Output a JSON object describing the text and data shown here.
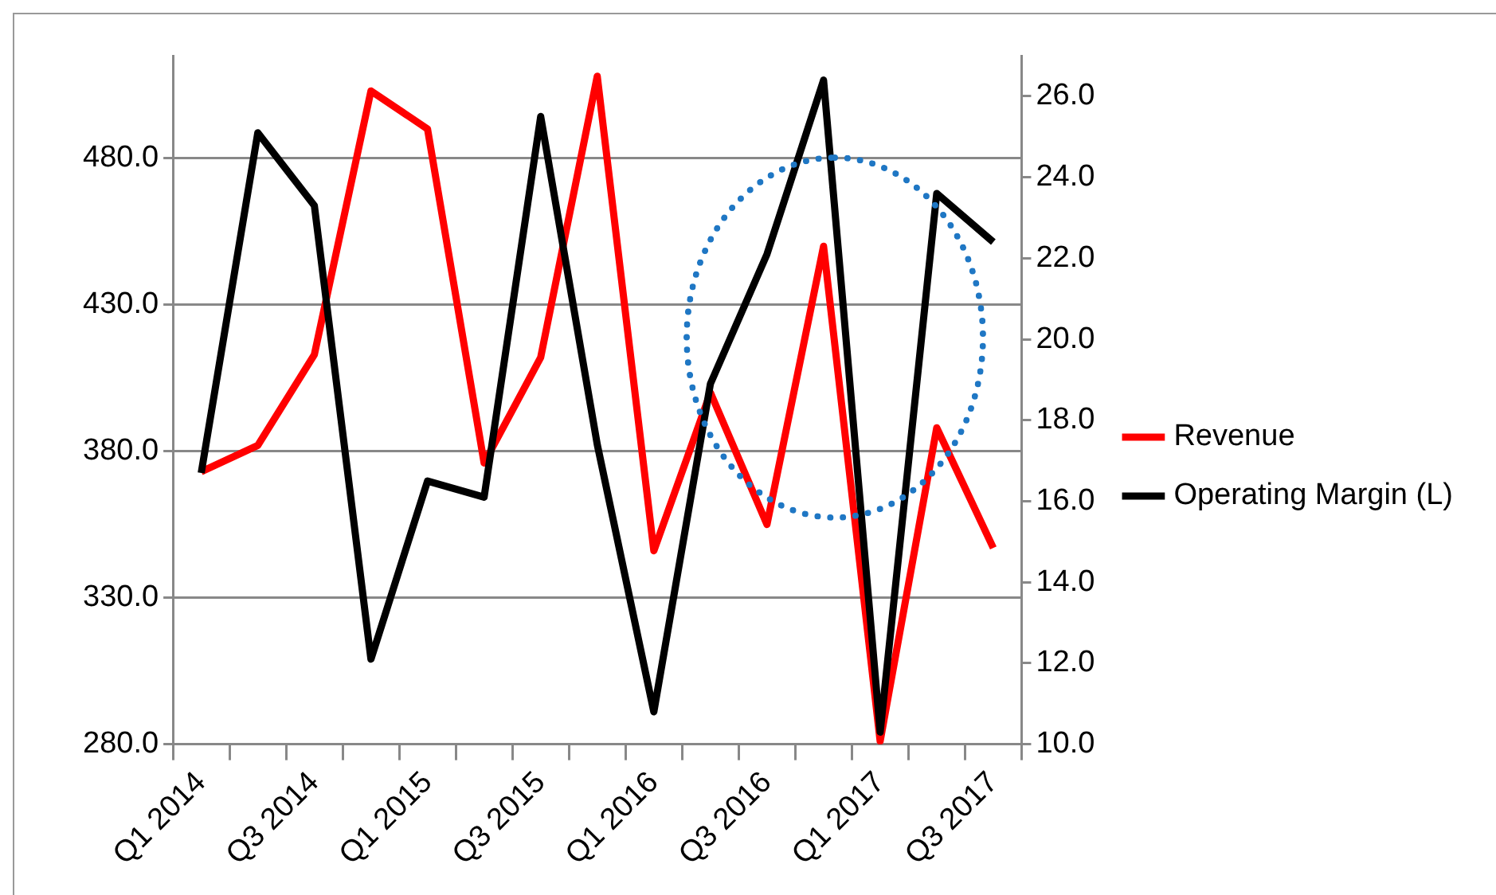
{
  "chart_data": {
    "type": "line",
    "categories": [
      "Q1 2014",
      null,
      "Q3 2014",
      null,
      "Q1 2015",
      null,
      "Q3 2015",
      null,
      "Q1 2016",
      null,
      "Q3 2016",
      null,
      "Q1 2017",
      null,
      "Q3 2017"
    ],
    "series": [
      {
        "name": "Revenue",
        "color": "#ff0000",
        "axis": "y",
        "values": [
          373,
          382,
          413,
          503,
          490,
          376,
          412,
          508,
          346,
          400,
          355,
          450,
          281,
          388,
          347
        ]
      },
      {
        "name": "Operating Margin (L)",
        "color": "#000000",
        "axis": "y2",
        "values": [
          16.7,
          25.1,
          23.3,
          12.1,
          16.5,
          16.1,
          25.5,
          17.4,
          10.8,
          18.9,
          22.1,
          26.4,
          10.3,
          23.6,
          22.4
        ]
      }
    ],
    "ylim": [
      280,
      515
    ],
    "yticks": [
      {
        "value": 280,
        "label": "280.0"
      },
      {
        "value": 330,
        "label": "330.0"
      },
      {
        "value": 380,
        "label": "380.0"
      },
      {
        "value": 430,
        "label": "430.0"
      },
      {
        "value": 480,
        "label": "480.0"
      }
    ],
    "y2lim": [
      10,
      27
    ],
    "y2ticks": [
      {
        "value": 10,
        "label": "10.0"
      },
      {
        "value": 12,
        "label": "12.0"
      },
      {
        "value": 14,
        "label": "14.0"
      },
      {
        "value": 16,
        "label": "16.0"
      },
      {
        "value": 18,
        "label": "18.0"
      },
      {
        "value": 20,
        "label": "20.0"
      },
      {
        "value": 22,
        "label": "22.0"
      },
      {
        "value": 24,
        "label": "24.0"
      },
      {
        "value": 26,
        "label": "26.0"
      }
    ],
    "grid": "y",
    "legend": "right",
    "marker": "none",
    "line_style": "solid"
  }
}
